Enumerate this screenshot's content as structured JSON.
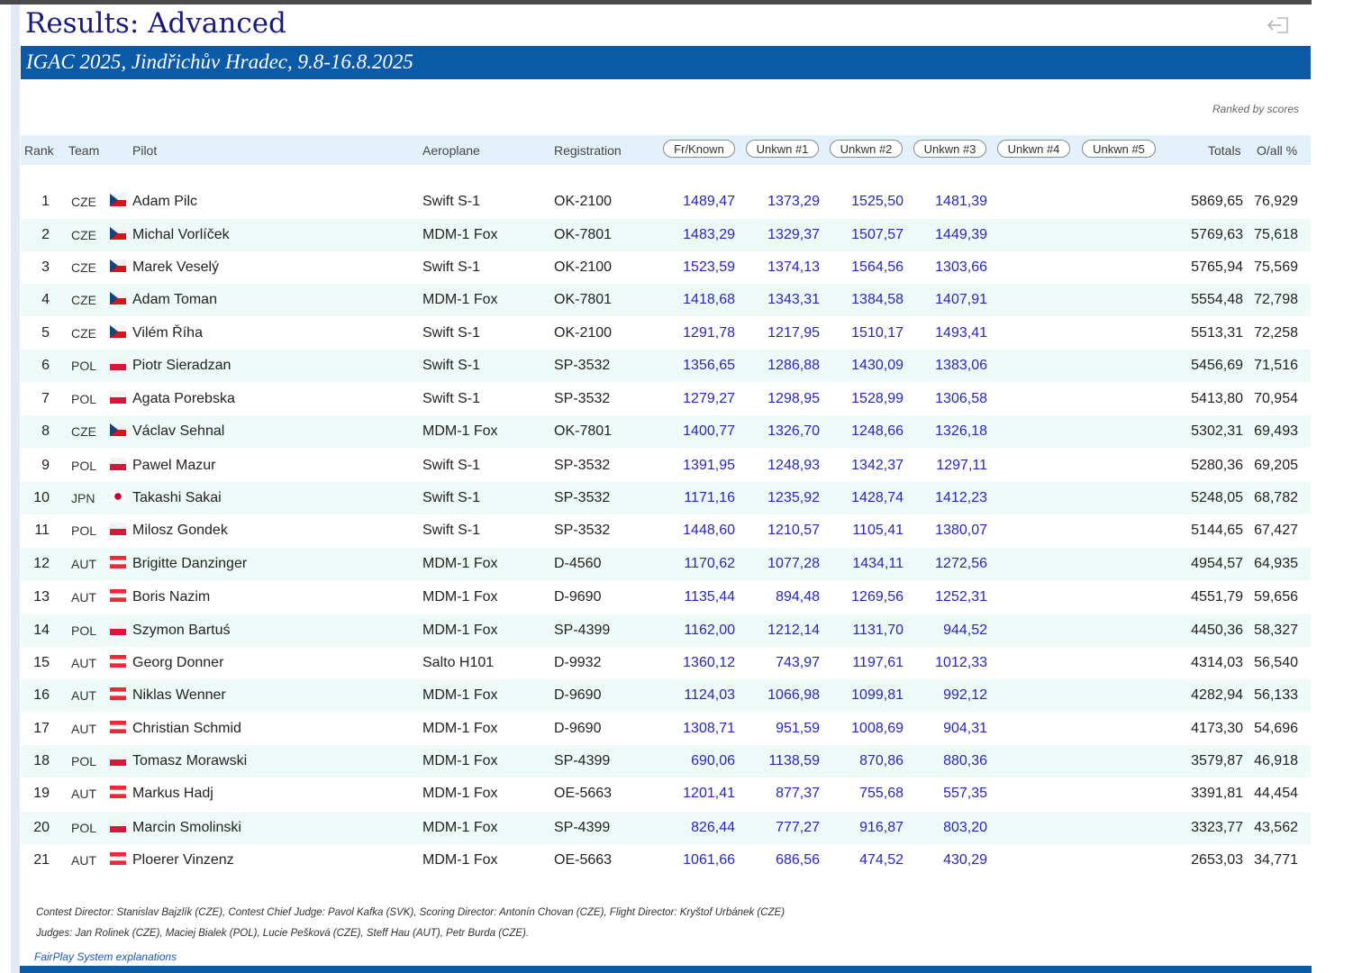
{
  "header": {
    "title": "Results: Advanced",
    "event": "IGAC 2025, Jindřichův Hradec, 9.8-16.8.2025",
    "ranked_note": "Ranked by scores",
    "exit_icon": "exit-icon"
  },
  "columns": {
    "rank": "Rank",
    "team": "Team",
    "pilot": "Pilot",
    "aeroplane": "Aeroplane",
    "registration": "Registration",
    "programs": [
      "Fr/Known",
      "Unkwn #1",
      "Unkwn #2",
      "Unkwn #3",
      "Unkwn #4",
      "Unkwn #5"
    ],
    "totals": "Totals",
    "overall": "O/all %"
  },
  "flags": {
    "CZE": "flag-czech-republic-icon",
    "POL": "flag-poland-icon",
    "JPN": "flag-japan-icon",
    "AUT": "flag-austria-icon"
  },
  "rows": [
    {
      "rank": "1",
      "team": "CZE",
      "pilot": "Adam Pilc",
      "plane": "Swift S-1",
      "reg": "OK-2100",
      "s1": "1489,47",
      "s2": "1373,29",
      "s3": "1525,50",
      "s4": "1481,39",
      "total": "5869,65",
      "pct": "76,929"
    },
    {
      "rank": "2",
      "team": "CZE",
      "pilot": "Michal Vorlíček",
      "plane": "MDM-1 Fox",
      "reg": "OK-7801",
      "s1": "1483,29",
      "s2": "1329,37",
      "s3": "1507,57",
      "s4": "1449,39",
      "total": "5769,63",
      "pct": "75,618"
    },
    {
      "rank": "3",
      "team": "CZE",
      "pilot": "Marek Veselý",
      "plane": "Swift S-1",
      "reg": "OK-2100",
      "s1": "1523,59",
      "s2": "1374,13",
      "s3": "1564,56",
      "s4": "1303,66",
      "total": "5765,94",
      "pct": "75,569"
    },
    {
      "rank": "4",
      "team": "CZE",
      "pilot": "Adam Toman",
      "plane": "MDM-1 Fox",
      "reg": "OK-7801",
      "s1": "1418,68",
      "s2": "1343,31",
      "s3": "1384,58",
      "s4": "1407,91",
      "total": "5554,48",
      "pct": "72,798"
    },
    {
      "rank": "5",
      "team": "CZE",
      "pilot": "Vilém Říha",
      "plane": "Swift S-1",
      "reg": "OK-2100",
      "s1": "1291,78",
      "s2": "1217,95",
      "s3": "1510,17",
      "s4": "1493,41",
      "total": "5513,31",
      "pct": "72,258"
    },
    {
      "rank": "6",
      "team": "POL",
      "pilot": "Piotr Sieradzan",
      "plane": "Swift S-1",
      "reg": "SP-3532",
      "s1": "1356,65",
      "s2": "1286,88",
      "s3": "1430,09",
      "s4": "1383,06",
      "total": "5456,69",
      "pct": "71,516"
    },
    {
      "rank": "7",
      "team": "POL",
      "pilot": "Agata Porebska",
      "plane": "Swift S-1",
      "reg": "SP-3532",
      "s1": "1279,27",
      "s2": "1298,95",
      "s3": "1528,99",
      "s4": "1306,58",
      "total": "5413,80",
      "pct": "70,954"
    },
    {
      "rank": "8",
      "team": "CZE",
      "pilot": "Václav Sehnal",
      "plane": "MDM-1 Fox",
      "reg": "OK-7801",
      "s1": "1400,77",
      "s2": "1326,70",
      "s3": "1248,66",
      "s4": "1326,18",
      "total": "5302,31",
      "pct": "69,493"
    },
    {
      "rank": "9",
      "team": "POL",
      "pilot": "Pawel Mazur",
      "plane": "Swift S-1",
      "reg": "SP-3532",
      "s1": "1391,95",
      "s2": "1248,93",
      "s3": "1342,37",
      "s4": "1297,11",
      "total": "5280,36",
      "pct": "69,205"
    },
    {
      "rank": "10",
      "team": "JPN",
      "pilot": "Takashi Sakai",
      "plane": "Swift S-1",
      "reg": "SP-3532",
      "s1": "1171,16",
      "s2": "1235,92",
      "s3": "1428,74",
      "s4": "1412,23",
      "total": "5248,05",
      "pct": "68,782"
    },
    {
      "rank": "11",
      "team": "POL",
      "pilot": "Milosz Gondek",
      "plane": "Swift S-1",
      "reg": "SP-3532",
      "s1": "1448,60",
      "s2": "1210,57",
      "s3": "1105,41",
      "s4": "1380,07",
      "total": "5144,65",
      "pct": "67,427"
    },
    {
      "rank": "12",
      "team": "AUT",
      "pilot": "Brigitte Danzinger",
      "plane": "MDM-1 Fox",
      "reg": "D-4560",
      "s1": "1170,62",
      "s2": "1077,28",
      "s3": "1434,11",
      "s4": "1272,56",
      "total": "4954,57",
      "pct": "64,935"
    },
    {
      "rank": "13",
      "team": "AUT",
      "pilot": "Boris Nazim",
      "plane": "MDM-1 Fox",
      "reg": "D-9690",
      "s1": "1135,44",
      "s2": "894,48",
      "s3": "1269,56",
      "s4": "1252,31",
      "total": "4551,79",
      "pct": "59,656"
    },
    {
      "rank": "14",
      "team": "POL",
      "pilot": "Szymon Bartuś",
      "plane": "MDM-1 Fox",
      "reg": "SP-4399",
      "s1": "1162,00",
      "s2": "1212,14",
      "s3": "1131,70",
      "s4": "944,52",
      "total": "4450,36",
      "pct": "58,327"
    },
    {
      "rank": "15",
      "team": "AUT",
      "pilot": "Georg Donner",
      "plane": "Salto H101",
      "reg": "D-9932",
      "s1": "1360,12",
      "s2": "743,97",
      "s3": "1197,61",
      "s4": "1012,33",
      "total": "4314,03",
      "pct": "56,540"
    },
    {
      "rank": "16",
      "team": "AUT",
      "pilot": "Niklas Wenner",
      "plane": "MDM-1 Fox",
      "reg": "D-9690",
      "s1": "1124,03",
      "s2": "1066,98",
      "s3": "1099,81",
      "s4": "992,12",
      "total": "4282,94",
      "pct": "56,133"
    },
    {
      "rank": "17",
      "team": "AUT",
      "pilot": "Christian Schmid",
      "plane": "MDM-1 Fox",
      "reg": "D-9690",
      "s1": "1308,71",
      "s2": "951,59",
      "s3": "1008,69",
      "s4": "904,31",
      "total": "4173,30",
      "pct": "54,696"
    },
    {
      "rank": "18",
      "team": "POL",
      "pilot": "Tomasz Morawski",
      "plane": "MDM-1 Fox",
      "reg": "SP-4399",
      "s1": "690,06",
      "s2": "1138,59",
      "s3": "870,86",
      "s4": "880,36",
      "total": "3579,87",
      "pct": "46,918"
    },
    {
      "rank": "19",
      "team": "AUT",
      "pilot": "Markus Hadj",
      "plane": "MDM-1 Fox",
      "reg": "OE-5663",
      "s1": "1201,41",
      "s2": "877,37",
      "s3": "755,68",
      "s4": "557,35",
      "total": "3391,81",
      "pct": "44,454"
    },
    {
      "rank": "20",
      "team": "POL",
      "pilot": "Marcin Smolinski",
      "plane": "MDM-1 Fox",
      "reg": "SP-4399",
      "s1": "826,44",
      "s2": "777,27",
      "s3": "916,87",
      "s4": "803,20",
      "total": "3323,77",
      "pct": "43,562"
    },
    {
      "rank": "21",
      "team": "AUT",
      "pilot": "Ploerer Vinzenz",
      "plane": "MDM-1 Fox",
      "reg": "OE-5663",
      "s1": "1061,66",
      "s2": "686,56",
      "s3": "474,52",
      "s4": "430,29",
      "total": "2653,03",
      "pct": "34,771"
    }
  ],
  "footer": {
    "officials": "Contest Director: Stanislav Bajzlík (CZE), Contest Chief Judge: Pavol Kafka (SVK), Scoring Director: Antonín Chovan (CZE), Flight Director: Kryštof Urbánek (CZE)",
    "judges": "Judges:  Jan Rolinek (CZE), Maciej Bialek (POL), Lucie Pešková (CZE), Steff Hau (AUT), Petr Burda (CZE).",
    "link": "FairPlay System explanations"
  },
  "colors": {
    "banner": "#0b5aa6",
    "title": "#1a1a7a",
    "score": "#2727b8",
    "header_row": "#e3f1fb",
    "alt_row": "#eefaf8"
  }
}
